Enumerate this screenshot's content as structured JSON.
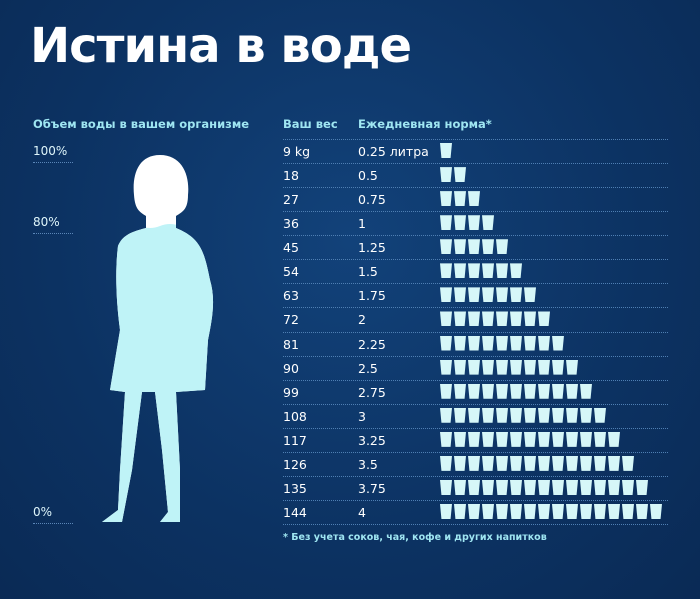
{
  "title": "Истина в воде",
  "left_header": "Объем воды в вашем организме",
  "percent_labels": [
    "100%",
    "80%",
    "0%"
  ],
  "body_water_percent": 80,
  "colors": {
    "background": "#0c3262",
    "accent": "#9fe6f2",
    "water": "#bff3f7",
    "glass": "#d6f7f8"
  },
  "chart_data": {
    "type": "table",
    "title": "Истина в воде",
    "columns": [
      "Ваш вес",
      "Ежедневная норма*"
    ],
    "rows": [
      {
        "weight": "9 kg",
        "norm": "0.25 литра",
        "glasses": 1
      },
      {
        "weight": "18",
        "norm": "0.5",
        "glasses": 2
      },
      {
        "weight": "27",
        "norm": "0.75",
        "glasses": 3
      },
      {
        "weight": "36",
        "norm": "1",
        "glasses": 4
      },
      {
        "weight": "45",
        "norm": "1.25",
        "glasses": 5
      },
      {
        "weight": "54",
        "norm": "1.5",
        "glasses": 6
      },
      {
        "weight": "63",
        "norm": "1.75",
        "glasses": 7
      },
      {
        "weight": "72",
        "norm": "2",
        "glasses": 8
      },
      {
        "weight": "81",
        "norm": "2.25",
        "glasses": 9
      },
      {
        "weight": "90",
        "norm": "2.5",
        "glasses": 10
      },
      {
        "weight": "99",
        "norm": "2.75",
        "glasses": 11
      },
      {
        "weight": "108",
        "norm": "3",
        "glasses": 12
      },
      {
        "weight": "117",
        "norm": "3.25",
        "glasses": 13
      },
      {
        "weight": "126",
        "norm": "3.5",
        "glasses": 14
      },
      {
        "weight": "135",
        "norm": "3.75",
        "glasses": 15
      },
      {
        "weight": "144",
        "norm": "4",
        "glasses": 16
      }
    ],
    "footnote": "* Без учета соков, чая, кофе и других напитков"
  }
}
